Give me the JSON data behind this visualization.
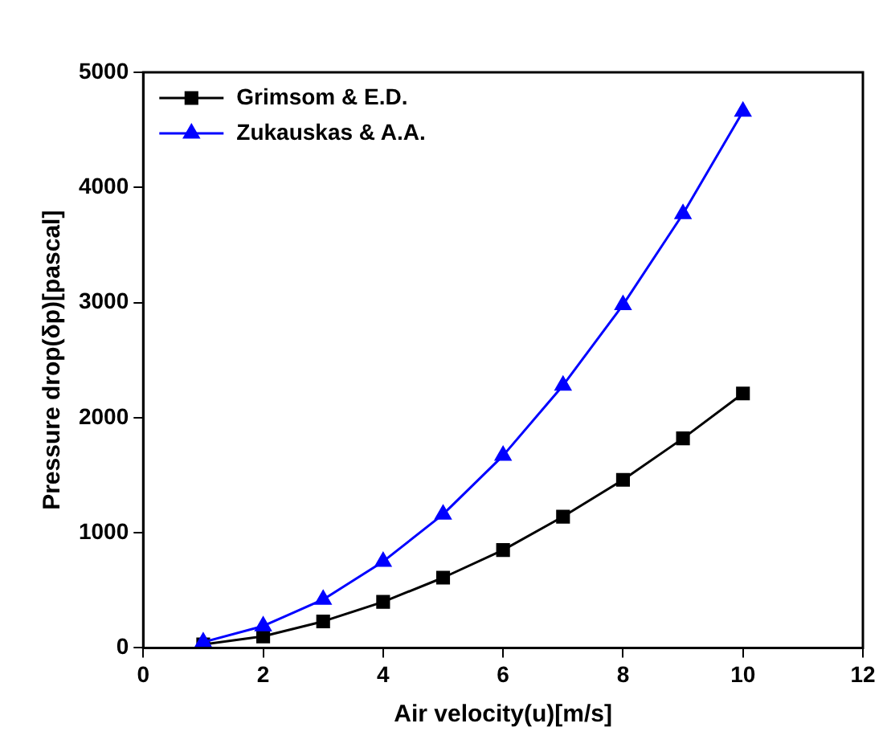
{
  "chart_data": {
    "type": "line",
    "xlabel": "Air velocity(u)[m/s]",
    "ylabel": "Pressure drop(δp)[pascal]",
    "x": [
      1,
      2,
      3,
      4,
      5,
      6,
      7,
      8,
      9,
      10
    ],
    "series": [
      {
        "name": "Grimsom & E.D.",
        "color": "#000000",
        "marker": "square",
        "values": [
          30,
          100,
          230,
          400,
          610,
          850,
          1140,
          1460,
          1820,
          2210
        ]
      },
      {
        "name": "Zukauskas & A.A.",
        "color": "#0000ff",
        "marker": "triangle",
        "values": [
          50,
          190,
          420,
          750,
          1160,
          1670,
          2280,
          2980,
          3770,
          4660
        ]
      }
    ],
    "xlim": [
      0,
      12
    ],
    "xticks": [
      0,
      2,
      4,
      6,
      8,
      10,
      12
    ],
    "ylim": [
      0,
      5000
    ],
    "yticks": [
      0,
      1000,
      2000,
      3000,
      4000,
      5000
    ],
    "grid": false,
    "legend": "top left",
    "line_style": "solid"
  }
}
